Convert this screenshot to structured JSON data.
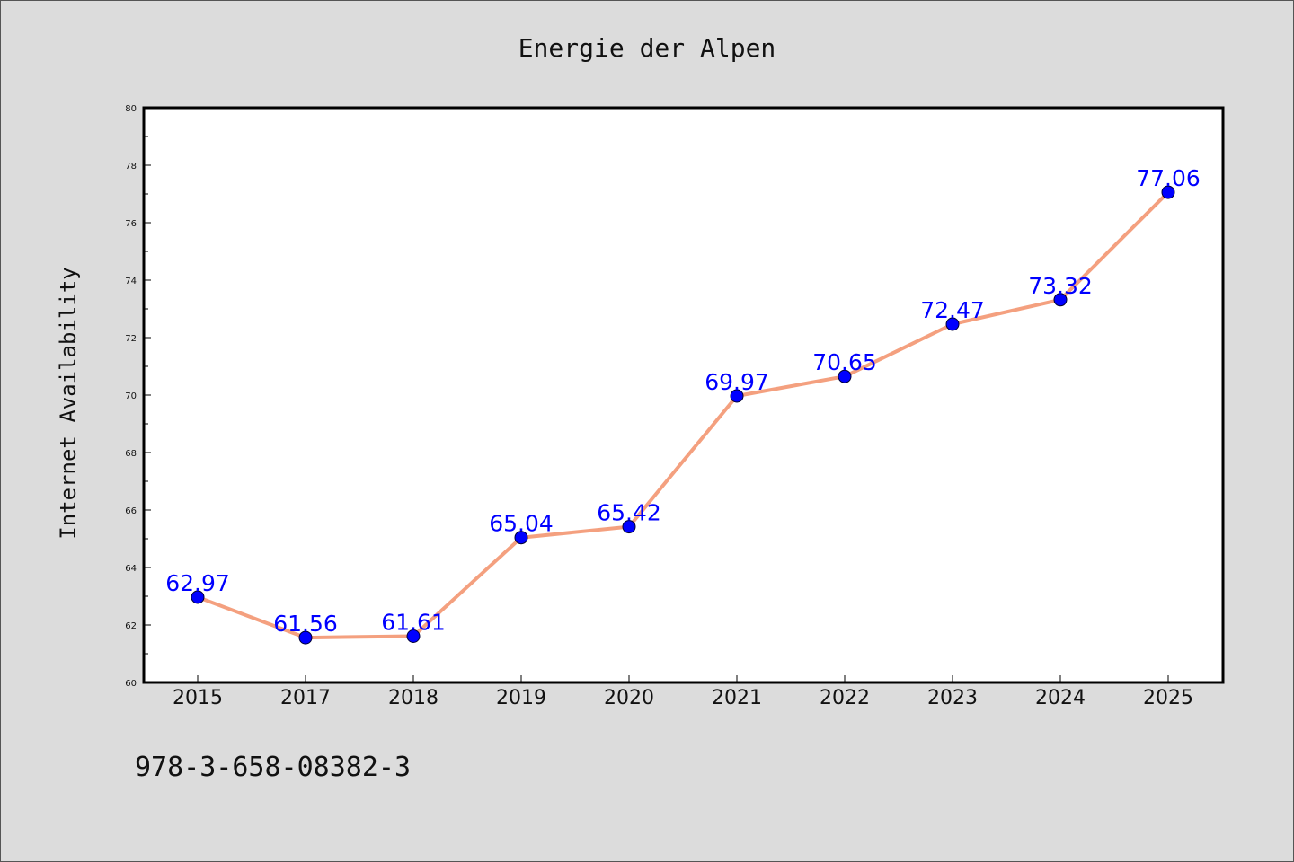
{
  "chart_data": {
    "type": "line",
    "title": "Energie der Alpen",
    "xlabel": "",
    "ylabel": "Internet Availability",
    "categories": [
      "2015",
      "2017",
      "2018",
      "2019",
      "2020",
      "2021",
      "2022",
      "2023",
      "2024",
      "2025"
    ],
    "series": [
      {
        "values": [
          62.97,
          61.56,
          61.61,
          65.04,
          65.42,
          69.97,
          70.65,
          72.47,
          73.32,
          77.06
        ],
        "labels": [
          "62.97",
          "61.56",
          "61.61",
          "65.04",
          "65.42",
          "69.97",
          "70.65",
          "72.47",
          "73.32",
          "77.06"
        ]
      }
    ],
    "ylim": [
      60,
      80
    ],
    "y_ticks": [
      "60",
      "62",
      "64",
      "66",
      "68",
      "70",
      "72",
      "74",
      "76",
      "78",
      "80"
    ],
    "grid": false,
    "legend": "none",
    "colors": {
      "line": "#f4a07f",
      "marker": "#0000ff",
      "data_label": "#0000ff",
      "background": "#dcdcdc",
      "plot_background": "#ffffff"
    }
  },
  "footnote": "978-3-658-08382-3"
}
